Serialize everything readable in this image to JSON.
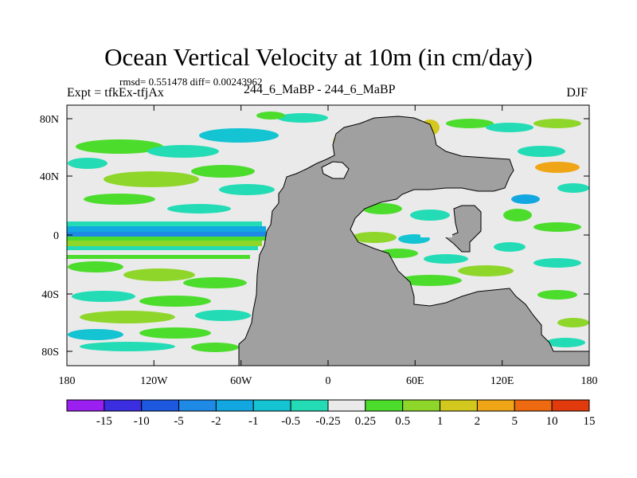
{
  "title": "Ocean Vertical Velocity at 10m (in cm/day)",
  "stats": "rmsd= 0.551478 diff= 0.00243962",
  "experiment": "Expt = tfkEx-tfjAx",
  "case": "244_6_MaBP - 244_6_MaBP",
  "season": "DJF",
  "y_ticks": [
    "80N",
    "40N",
    "0",
    "40S",
    "80S"
  ],
  "x_ticks": [
    "180",
    "120W",
    "60W",
    "0",
    "60E",
    "120E",
    "180"
  ],
  "colorbar": {
    "labels": [
      "-15",
      "-10",
      "-5",
      "-2",
      "-1",
      "-0.5",
      "-0.25",
      "0.25",
      "0.5",
      "1",
      "2",
      "5",
      "10",
      "15"
    ],
    "colors": [
      "#9b1ff0",
      "#3a2ee0",
      "#1c58e0",
      "#1f8ae6",
      "#12a7e0",
      "#14c4d2",
      "#23dcb6",
      "#eaeaea",
      "#4cdc2c",
      "#8fd62a",
      "#d2c81e",
      "#f0a516",
      "#ee6a10",
      "#e13a0c"
    ]
  },
  "colors": {
    "land": "#a0a0a0",
    "near_zero": "#eaeaea"
  }
}
